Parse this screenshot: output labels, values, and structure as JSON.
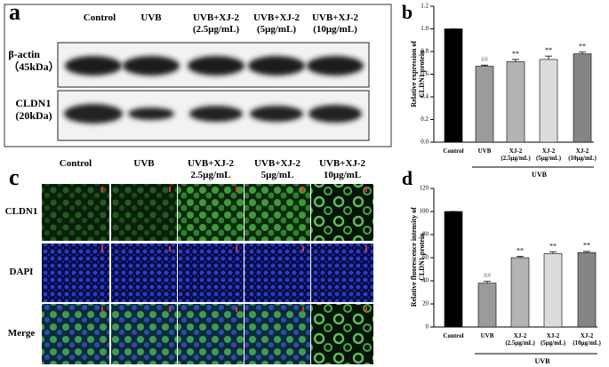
{
  "panel_a": {
    "label": "a",
    "columns": [
      "Control",
      "UVB",
      "UVB+XJ-2\n(2.5μg/mL)",
      "UVB+XJ-2\n(5μg/mL)",
      "UVB+XJ-2\n(10μg/mL)"
    ],
    "rows": [
      "β-actin\n（45kDa）",
      "CLDN1\n(20kDa)"
    ]
  },
  "panel_c": {
    "label": "c",
    "columns": [
      "Control",
      "UVB",
      "UVB+XJ-2\n2.5μg/mL",
      "UVB+XJ-2\n5μg/mL",
      "UVB+XJ-2\n10μg/mL"
    ],
    "rows": [
      "CLDN1",
      "DAPI",
      "Merge"
    ]
  },
  "chart_data": [
    {
      "type": "bar",
      "panel_label": "b",
      "y_label": "Relative expression of\nCLDN1 protein",
      "categories": [
        "Control",
        "UVB",
        "XJ-2\n(2.5μg/mL)",
        "XJ-2\n(5μg/mL)",
        "XJ-2\n(10μg/mL)"
      ],
      "values": [
        1.0,
        0.67,
        0.71,
        0.73,
        0.78
      ],
      "errors": [
        0,
        0.01,
        0.02,
        0.03,
        0.015
      ],
      "annotations": [
        null,
        "##",
        "**",
        "**",
        "**"
      ],
      "colors": [
        "#000000",
        "#9b9b9b",
        "#b3b3b3",
        "#dcdcdc",
        "#858585"
      ],
      "group_label": "UVB",
      "ylim": [
        0,
        1.2
      ],
      "yticks": [
        {
          "value": 0,
          "label": "0.0"
        },
        {
          "value": 0.2,
          "label": "0.2"
        },
        {
          "value": 0.4,
          "label": "0.4"
        },
        {
          "value": 0.6,
          "label": "0.6"
        },
        {
          "value": 0.8,
          "label": "0.8"
        },
        {
          "value": 1.0,
          "label": "1.0"
        },
        {
          "value": 1.2,
          "label": "1.2"
        }
      ]
    },
    {
      "type": "bar",
      "panel_label": "d",
      "y_label": "Relative fluorescence intensity of\nCLDN1 protein",
      "categories": [
        "Control",
        "UVB",
        "XJ-2\n(2.5μg/mL)",
        "XJ-2\n(5μg/mL)",
        "XJ-2\n(10μg/mL)"
      ],
      "values": [
        100,
        38,
        60,
        63.5,
        64.5
      ],
      "errors": [
        0,
        1.5,
        1,
        1.5,
        1
      ],
      "annotations": [
        null,
        "##",
        "**",
        "**",
        "**"
      ],
      "colors": [
        "#000000",
        "#9b9b9b",
        "#b3b3b3",
        "#dcdcdc",
        "#858585"
      ],
      "group_label": "UVB",
      "ylim": [
        0,
        120
      ],
      "yticks": [
        0,
        20,
        40,
        60,
        80,
        100,
        120
      ]
    }
  ]
}
